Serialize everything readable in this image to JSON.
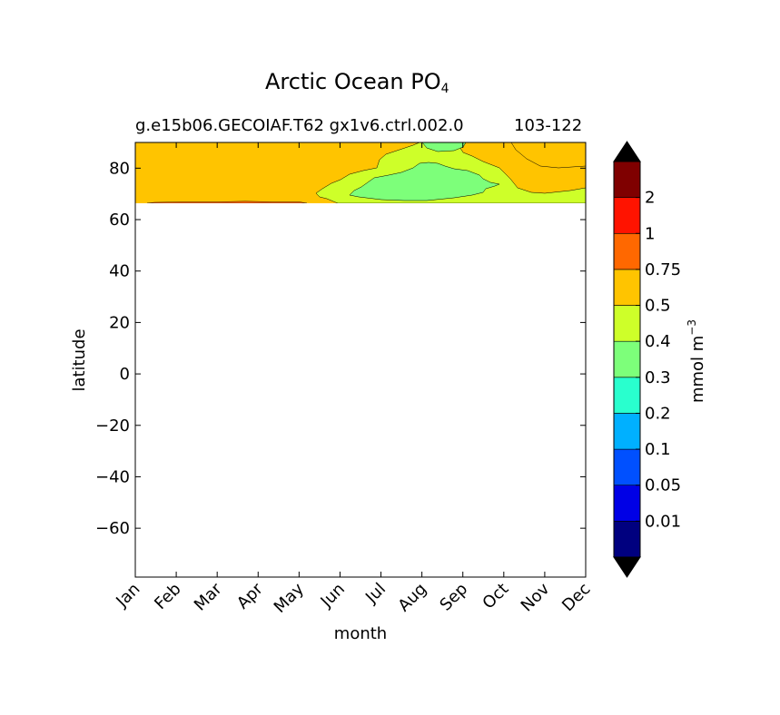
{
  "title": "Arctic Ocean PO",
  "title_subscript": "4",
  "subtitle_left": "g.e15b06.GECOIAF.T62 gx1v6.ctrl.002.0",
  "subtitle_right": "103-122",
  "chart_data": {
    "type": "heatmap",
    "xlabel": "month",
    "ylabel": "latitude",
    "x_categories": [
      "Jan",
      "Feb",
      "Mar",
      "Apr",
      "May",
      "Jun",
      "Jul",
      "Aug",
      "Sep",
      "Oct",
      "Nov",
      "Dec"
    ],
    "y_ticks": [
      80,
      60,
      40,
      20,
      0,
      -20,
      -40,
      -60
    ],
    "ylim": [
      -79,
      90
    ],
    "data_lat_range": [
      66,
      90
    ],
    "colorbar": {
      "label": "mmol m",
      "label_superscript": "−3",
      "levels": [
        "0.01",
        "0.05",
        "0.1",
        "0.2",
        "0.3",
        "0.4",
        "0.5",
        "0.75",
        "1",
        "2"
      ],
      "colors": [
        "#00007f",
        "#0000e6",
        "#0050ff",
        "#00b0ff",
        "#29ffce",
        "#7dff7a",
        "#ceff29",
        "#ffc400",
        "#ff6800",
        "#ff1300",
        "#7f0000"
      ],
      "extend": "both",
      "extend_colors": [
        "#000000",
        "#000000"
      ]
    },
    "regions": [
      {
        "range": "0.5-0.75",
        "description": "background",
        "color": "#ffc400"
      },
      {
        "range": "0.4-0.5",
        "months": "Jun-Dec",
        "color": "#ceff29"
      },
      {
        "range": "0.3-0.4",
        "months": "Jul-Sep",
        "color": "#7dff7a"
      },
      {
        "range": "0.75-1",
        "months": "Jan-May",
        "lat": 66,
        "color": "#ff6800"
      }
    ]
  }
}
